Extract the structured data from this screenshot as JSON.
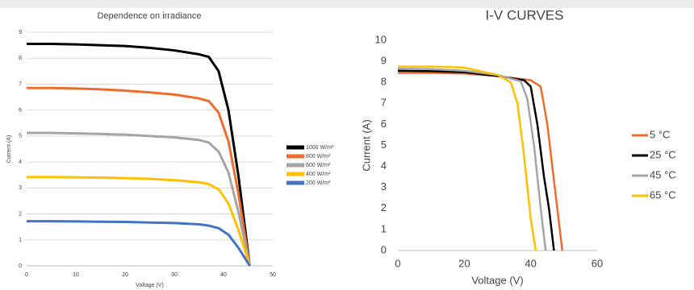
{
  "chart_data": [
    {
      "type": "line",
      "title": "Dependence on irradiance",
      "xlabel": "Voltage (V)",
      "ylabel": "Current (A)",
      "xlim": [
        0,
        50
      ],
      "xticks": [
        0,
        10,
        20,
        30,
        40,
        50
      ],
      "ylim": [
        0,
        9
      ],
      "yticks": [
        0,
        1,
        2,
        3,
        4,
        5,
        6,
        7,
        8,
        9
      ],
      "grid": true,
      "legend": "right",
      "x": [
        0,
        5,
        10,
        15,
        20,
        25,
        30,
        35,
        37,
        39,
        41,
        43,
        44,
        45,
        45.3
      ],
      "series": [
        {
          "name": "1000 W/m²",
          "color": "#000000",
          "values": [
            8.55,
            8.55,
            8.53,
            8.5,
            8.47,
            8.4,
            8.3,
            8.15,
            8.05,
            7.5,
            6,
            3.5,
            2,
            0.5,
            0
          ]
        },
        {
          "name": "800 W/m²",
          "color": "#ed6d2d",
          "values": [
            6.85,
            6.85,
            6.83,
            6.8,
            6.75,
            6.68,
            6.6,
            6.45,
            6.35,
            5.9,
            4.8,
            2.8,
            1.6,
            0.4,
            0
          ]
        },
        {
          "name": "600 W/m²",
          "color": "#a5a5a5",
          "values": [
            5.12,
            5.12,
            5.1,
            5.08,
            5.05,
            5.0,
            4.95,
            4.85,
            4.75,
            4.4,
            3.6,
            2.1,
            1.2,
            0.3,
            0
          ]
        },
        {
          "name": "400 W/m²",
          "color": "#ffc000",
          "values": [
            3.42,
            3.42,
            3.41,
            3.4,
            3.38,
            3.35,
            3.3,
            3.22,
            3.15,
            2.95,
            2.4,
            1.4,
            0.8,
            0.2,
            0
          ]
        },
        {
          "name": "200 W/m²",
          "color": "#4472c4",
          "values": [
            1.72,
            1.72,
            1.71,
            1.7,
            1.69,
            1.67,
            1.65,
            1.6,
            1.55,
            1.45,
            1.2,
            0.7,
            0.4,
            0.1,
            0
          ]
        }
      ]
    },
    {
      "type": "line",
      "title": "I-V CURVES",
      "xlabel": "Voltage (V)",
      "ylabel": "Current (A)",
      "xlim": [
        0,
        60
      ],
      "xticks": [
        0,
        20,
        40,
        60
      ],
      "ylim": [
        0,
        10
      ],
      "yticks": [
        0,
        1,
        2,
        3,
        4,
        5,
        6,
        7,
        8,
        9,
        10
      ],
      "grid": false,
      "legend": "right",
      "series": [
        {
          "name": "5 °C",
          "color": "#ed6d2d",
          "x": [
            0,
            10,
            20,
            30,
            40,
            43,
            45,
            46.5,
            48,
            49.5
          ],
          "values": [
            8.45,
            8.45,
            8.42,
            8.3,
            8.1,
            7.8,
            6,
            4,
            2,
            0
          ]
        },
        {
          "name": "25 °C",
          "color": "#000000",
          "x": [
            0,
            10,
            20,
            30,
            38,
            40,
            42,
            44,
            45.5,
            47
          ],
          "values": [
            8.55,
            8.53,
            8.48,
            8.3,
            8.1,
            7.8,
            6,
            3.5,
            2,
            0
          ]
        },
        {
          "name": "45 °C",
          "color": "#a5a5a5",
          "x": [
            0,
            10,
            20,
            30,
            37,
            39,
            41,
            42,
            43,
            44.5
          ],
          "values": [
            8.65,
            8.63,
            8.55,
            8.35,
            8.05,
            7.2,
            5,
            3.5,
            2,
            0
          ]
        },
        {
          "name": "65 °C",
          "color": "#ffc000",
          "x": [
            0,
            10,
            20,
            30,
            34,
            36,
            38,
            39,
            40,
            41.5
          ],
          "values": [
            8.75,
            8.75,
            8.7,
            8.35,
            8.0,
            7,
            4.5,
            3,
            1.5,
            0
          ]
        }
      ]
    }
  ]
}
